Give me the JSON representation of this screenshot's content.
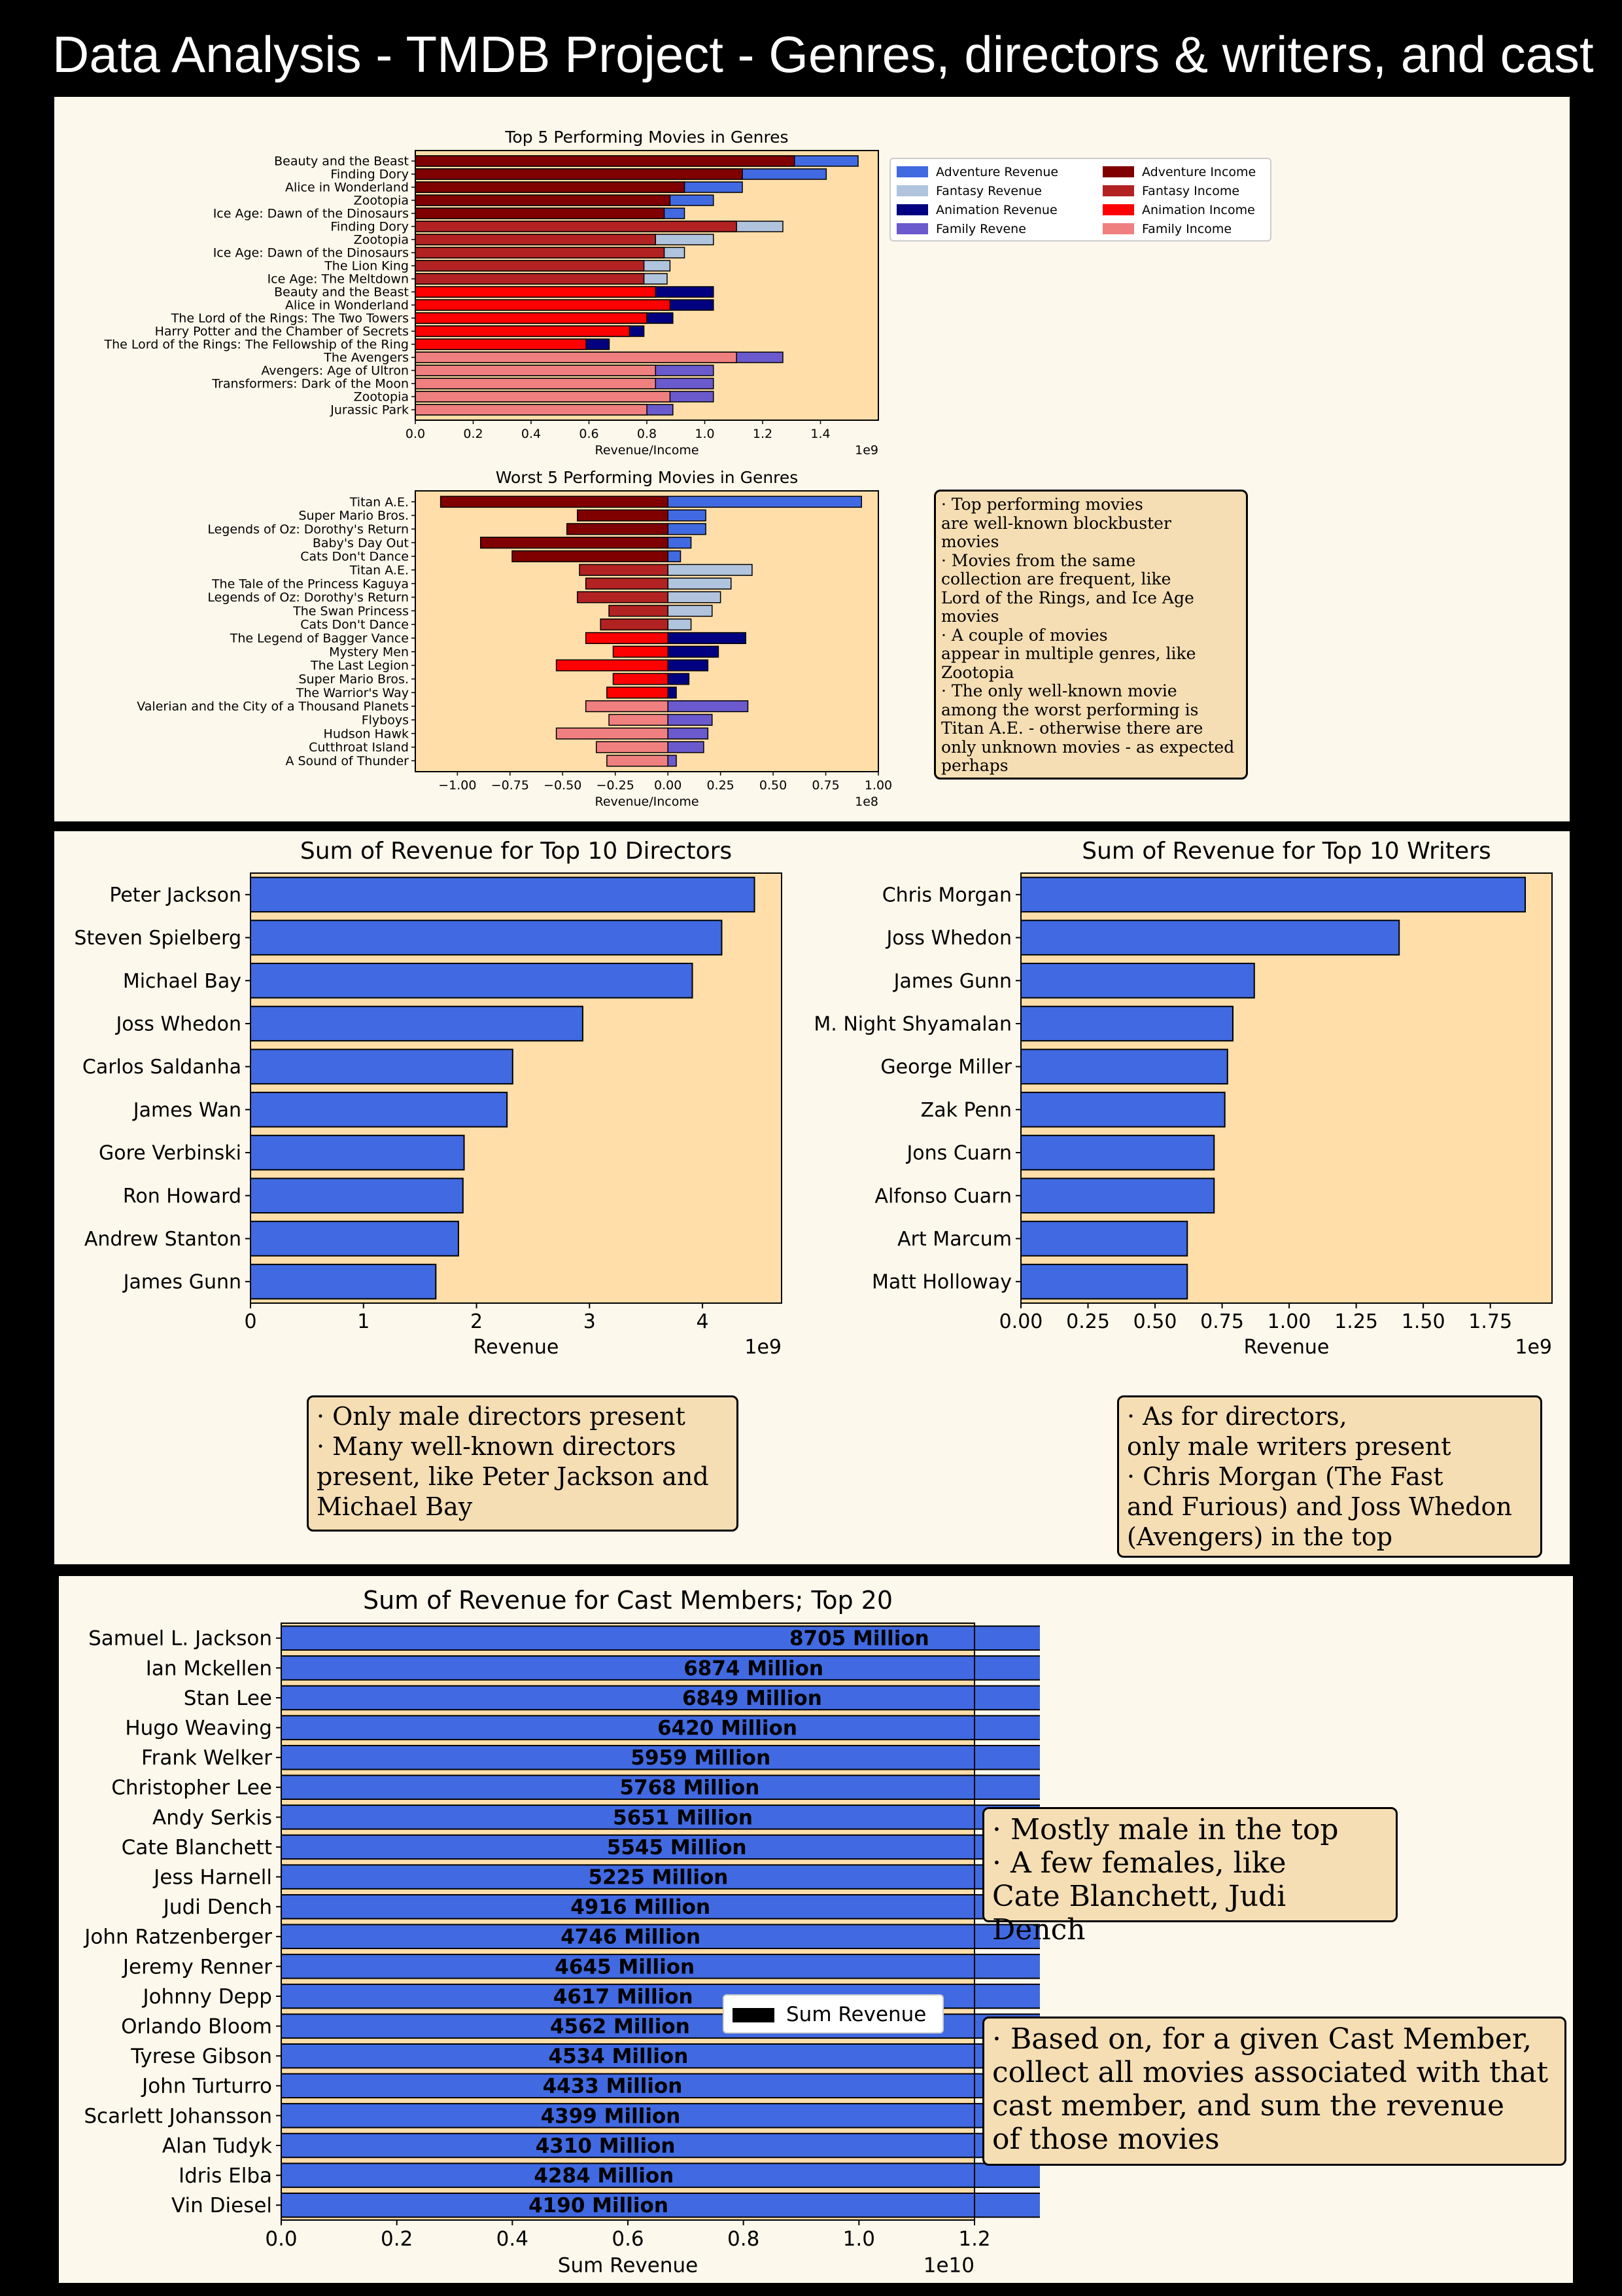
{
  "page_title": "Data Analysis - TMDB Project - Genres, directors & writers, and cast",
  "colors": {
    "plot_bg": "#ffdeaa",
    "blue": "#4169e1",
    "navy": "#000080",
    "slateblue": "#6a5acd",
    "lightsteel": "#b0c4de",
    "maroon": "#800000",
    "firebrick": "#b22222",
    "red": "#ff0000",
    "lightcoral": "#f08080"
  },
  "notes": {
    "genres": "· Top performing movies\nare well-known blockbuster\nmovies\n· Movies from the same\ncollection are frequent, like\nLord of the Rings, and Ice Age\nmovies\n· A couple of movies\nappear in multiple genres, like\nZootopia\n· The only well-known movie\namong the worst performing is\nTitan A.E. - otherwise there are\nonly unknown movies - as expected\nperhaps",
    "directors": "· Only male directors present\n· Many well-known directors\npresent, like Peter Jackson and\nMichael Bay",
    "writers": "· As for directors,\nonly male writers present\n· Chris Morgan (The Fast\nand Furious) and Joss Whedon\n(Avengers) in the top",
    "cast_1": "· Mostly male in the top\n· A few females, like\nCate Blanchett, Judi Dench",
    "cast_2": "· Based on, for a given Cast Member,\ncollect all movies associated with that\ncast member, and sum the revenue\nof those movies"
  },
  "chart_data": [
    {
      "id": "top5",
      "type": "bar",
      "orientation": "horizontal",
      "title": "Top 5 Performing Movies in Genres",
      "xlabel": "Revenue/Income",
      "xlim": [
        0,
        1.6
      ],
      "xticks": [
        "0.0",
        "0.2",
        "0.4",
        "0.6",
        "0.8",
        "1.0",
        "1.2",
        "1.4"
      ],
      "scale_label": "1e9",
      "legend": {
        "placement": "right",
        "entries": [
          {
            "label": "Adventure Revenue",
            "color": "#4169e1"
          },
          {
            "label": "Fantasy Revenue",
            "color": "#b0c4de"
          },
          {
            "label": "Animation Revenue",
            "color": "#000080"
          },
          {
            "label": "Family Revene",
            "color": "#6a5acd"
          },
          {
            "label": "Adventure Income",
            "color": "#800000"
          },
          {
            "label": "Fantasy Income",
            "color": "#b22222"
          },
          {
            "label": "Animation Income",
            "color": "#ff0000"
          },
          {
            "label": "Family Income",
            "color": "#f08080"
          }
        ]
      },
      "rows": [
        {
          "label": "Beauty and the Beast",
          "revenue": 1.53,
          "income": 1.31,
          "rev_color": "#4169e1",
          "inc_color": "#800000"
        },
        {
          "label": "Finding Dory",
          "revenue": 1.42,
          "income": 1.13,
          "rev_color": "#4169e1",
          "inc_color": "#800000"
        },
        {
          "label": "Alice in Wonderland",
          "revenue": 1.13,
          "income": 0.93,
          "rev_color": "#4169e1",
          "inc_color": "#800000"
        },
        {
          "label": "Zootopia",
          "revenue": 1.03,
          "income": 0.88,
          "rev_color": "#4169e1",
          "inc_color": "#800000"
        },
        {
          "label": "Ice Age: Dawn of the Dinosaurs",
          "revenue": 0.93,
          "income": 0.86,
          "rev_color": "#4169e1",
          "inc_color": "#800000"
        },
        {
          "label": "Finding Dory",
          "revenue": 1.27,
          "income": 1.11,
          "rev_color": "#b0c4de",
          "inc_color": "#b22222"
        },
        {
          "label": "Zootopia",
          "revenue": 1.03,
          "income": 0.83,
          "rev_color": "#b0c4de",
          "inc_color": "#b22222"
        },
        {
          "label": "Ice Age: Dawn of the Dinosaurs",
          "revenue": 0.93,
          "income": 0.86,
          "rev_color": "#b0c4de",
          "inc_color": "#b22222"
        },
        {
          "label": "The Lion King",
          "revenue": 0.88,
          "income": 0.79,
          "rev_color": "#b0c4de",
          "inc_color": "#b22222"
        },
        {
          "label": "Ice Age: The Meltdown",
          "revenue": 0.87,
          "income": 0.79,
          "rev_color": "#b0c4de",
          "inc_color": "#b22222"
        },
        {
          "label": "Beauty and the Beast",
          "revenue": 1.03,
          "income": 0.83,
          "rev_color": "#000080",
          "inc_color": "#ff0000"
        },
        {
          "label": "Alice in Wonderland",
          "revenue": 1.03,
          "income": 0.88,
          "rev_color": "#000080",
          "inc_color": "#ff0000"
        },
        {
          "label": "The Lord of the Rings: The Two Towers",
          "revenue": 0.89,
          "income": 0.8,
          "rev_color": "#000080",
          "inc_color": "#ff0000"
        },
        {
          "label": "Harry Potter and the Chamber of Secrets",
          "revenue": 0.79,
          "income": 0.74,
          "rev_color": "#000080",
          "inc_color": "#ff0000"
        },
        {
          "label": "The Lord of the Rings: The Fellowship of the Ring",
          "revenue": 0.67,
          "income": 0.59,
          "rev_color": "#000080",
          "inc_color": "#ff0000"
        },
        {
          "label": "The Avengers",
          "revenue": 1.27,
          "income": 1.11,
          "rev_color": "#6a5acd",
          "inc_color": "#f08080"
        },
        {
          "label": "Avengers: Age of Ultron",
          "revenue": 1.03,
          "income": 0.83,
          "rev_color": "#6a5acd",
          "inc_color": "#f08080"
        },
        {
          "label": "Transformers: Dark of the Moon",
          "revenue": 1.03,
          "income": 0.83,
          "rev_color": "#6a5acd",
          "inc_color": "#f08080"
        },
        {
          "label": "Zootopia",
          "revenue": 1.03,
          "income": 0.88,
          "rev_color": "#6a5acd",
          "inc_color": "#f08080"
        },
        {
          "label": "Jurassic Park",
          "revenue": 0.89,
          "income": 0.8,
          "rev_color": "#6a5acd",
          "inc_color": "#f08080"
        }
      ]
    },
    {
      "id": "worst5",
      "type": "bar",
      "orientation": "horizontal",
      "title": "Worst 5 Performing Movies in Genres",
      "xlabel": "Revenue/Income",
      "xlim": [
        -1.2,
        1.0
      ],
      "xticks": [
        "−1.00",
        "−0.75",
        "−0.50",
        "−0.25",
        "0.00",
        "0.25",
        "0.50",
        "0.75",
        "1.00"
      ],
      "xtick_values": [
        -1.0,
        -0.75,
        -0.5,
        -0.25,
        0,
        0.25,
        0.5,
        0.75,
        1.0
      ],
      "scale_label": "1e8",
      "rows": [
        {
          "label": "Titan A.E.",
          "revenue": 0.92,
          "income": -1.08,
          "rev_color": "#4169e1",
          "inc_color": "#800000"
        },
        {
          "label": "Super Mario Bros.",
          "revenue": 0.18,
          "income": -0.43,
          "rev_color": "#4169e1",
          "inc_color": "#800000"
        },
        {
          "label": "Legends of Oz: Dorothy's Return",
          "revenue": 0.18,
          "income": -0.48,
          "rev_color": "#4169e1",
          "inc_color": "#800000"
        },
        {
          "label": "Baby's Day Out",
          "revenue": 0.11,
          "income": -0.89,
          "rev_color": "#4169e1",
          "inc_color": "#800000"
        },
        {
          "label": "Cats Don't Dance",
          "revenue": 0.06,
          "income": -0.74,
          "rev_color": "#4169e1",
          "inc_color": "#800000"
        },
        {
          "label": "Titan A.E.",
          "revenue": 0.4,
          "income": -0.42,
          "rev_color": "#b0c4de",
          "inc_color": "#b22222"
        },
        {
          "label": "The Tale of the Princess Kaguya",
          "revenue": 0.3,
          "income": -0.39,
          "rev_color": "#b0c4de",
          "inc_color": "#b22222"
        },
        {
          "label": "Legends of Oz: Dorothy's Return",
          "revenue": 0.25,
          "income": -0.43,
          "rev_color": "#b0c4de",
          "inc_color": "#b22222"
        },
        {
          "label": "The Swan Princess",
          "revenue": 0.21,
          "income": -0.28,
          "rev_color": "#b0c4de",
          "inc_color": "#b22222"
        },
        {
          "label": "Cats Don't Dance",
          "revenue": 0.11,
          "income": -0.32,
          "rev_color": "#b0c4de",
          "inc_color": "#b22222"
        },
        {
          "label": "The Legend of Bagger Vance",
          "revenue": 0.37,
          "income": -0.39,
          "rev_color": "#000080",
          "inc_color": "#ff0000"
        },
        {
          "label": "Mystery Men",
          "revenue": 0.24,
          "income": -0.26,
          "rev_color": "#000080",
          "inc_color": "#ff0000"
        },
        {
          "label": "The Last Legion",
          "revenue": 0.19,
          "income": -0.53,
          "rev_color": "#000080",
          "inc_color": "#ff0000"
        },
        {
          "label": "Super Mario Bros.",
          "revenue": 0.1,
          "income": -0.26,
          "rev_color": "#000080",
          "inc_color": "#ff0000"
        },
        {
          "label": "The Warrior's Way",
          "revenue": 0.04,
          "income": -0.29,
          "rev_color": "#000080",
          "inc_color": "#ff0000"
        },
        {
          "label": "Valerian and the City of a Thousand Planets",
          "revenue": 0.38,
          "income": -0.39,
          "rev_color": "#6a5acd",
          "inc_color": "#f08080"
        },
        {
          "label": "Flyboys",
          "revenue": 0.21,
          "income": -0.28,
          "rev_color": "#6a5acd",
          "inc_color": "#f08080"
        },
        {
          "label": "Hudson Hawk",
          "revenue": 0.19,
          "income": -0.53,
          "rev_color": "#6a5acd",
          "inc_color": "#f08080"
        },
        {
          "label": "Cutthroat Island",
          "revenue": 0.17,
          "income": -0.34,
          "rev_color": "#6a5acd",
          "inc_color": "#f08080"
        },
        {
          "label": "A Sound of Thunder",
          "revenue": 0.04,
          "income": -0.29,
          "rev_color": "#6a5acd",
          "inc_color": "#f08080"
        }
      ]
    },
    {
      "id": "directors",
      "type": "bar",
      "orientation": "horizontal",
      "title": "Sum of Revenue for Top 10 Directors",
      "xlabel": "Revenue",
      "xlim": [
        0,
        4.7
      ],
      "xticks": [
        "0",
        "1",
        "2",
        "3",
        "4"
      ],
      "xtick_values": [
        0,
        1,
        2,
        3,
        4
      ],
      "scale_label": "1e9",
      "categories": [
        "Peter Jackson",
        "Steven Spielberg",
        "Michael Bay",
        "Joss Whedon",
        "Carlos Saldanha",
        "James Wan",
        "Gore Verbinski",
        "Ron Howard",
        "Andrew Stanton",
        "James Gunn"
      ],
      "values": [
        4.46,
        4.17,
        3.91,
        2.94,
        2.32,
        2.27,
        1.89,
        1.88,
        1.84,
        1.64
      ]
    },
    {
      "id": "writers",
      "type": "bar",
      "orientation": "horizontal",
      "title": "Sum of Revenue for Top 10 Writers",
      "xlabel": "Revenue",
      "xlim": [
        0,
        1.98
      ],
      "xticks": [
        "0.00",
        "0.25",
        "0.50",
        "0.75",
        "1.00",
        "1.25",
        "1.50",
        "1.75"
      ],
      "xtick_values": [
        0,
        0.25,
        0.5,
        0.75,
        1.0,
        1.25,
        1.5,
        1.75
      ],
      "scale_label": "1e9",
      "categories": [
        "Chris Morgan",
        "Joss Whedon",
        "James Gunn",
        "M. Night Shyamalan",
        "George Miller",
        "Zak Penn",
        "Jons Cuarn",
        "Alfonso Cuarn",
        "Art Marcum",
        "Matt Holloway"
      ],
      "values": [
        1.88,
        1.41,
        0.87,
        0.79,
        0.77,
        0.76,
        0.72,
        0.72,
        0.62,
        0.62
      ]
    },
    {
      "id": "cast",
      "type": "bar",
      "orientation": "horizontal",
      "title": "Sum of Revenue for Cast Members; Top 20",
      "xlabel": "Sum Revenue",
      "xlim": [
        0,
        1.2
      ],
      "xticks": [
        "0.0",
        "0.2",
        "0.4",
        "0.6",
        "0.8",
        "1.0",
        "1.2"
      ],
      "xtick_values": [
        0,
        0.2,
        0.4,
        0.6,
        0.8,
        1.0,
        1.2
      ],
      "scale_label": "1e10",
      "legend": {
        "placement": "center-right",
        "entries": [
          {
            "label": "Sum Revenue",
            "color": "#000000"
          }
        ]
      },
      "categories": [
        "Samuel L. Jackson",
        "Ian Mckellen",
        "Stan Lee",
        "Hugo Weaving",
        "Frank Welker",
        "Christopher Lee",
        "Andy Serkis",
        "Cate Blanchett",
        "Jess Harnell",
        "Judi Dench",
        "John Ratzenberger",
        "Jeremy Renner",
        "Johnny Depp",
        "Orlando Bloom",
        "Tyrese Gibson",
        "John Turturro",
        "Scarlett Johansson",
        "Alan Tudyk",
        "Idris Elba",
        "Vin Diesel"
      ],
      "values": [
        8705,
        6874,
        6849,
        6420,
        5959,
        5768,
        5651,
        5545,
        5225,
        4916,
        4746,
        4645,
        4617,
        4562,
        4534,
        4433,
        4399,
        4310,
        4284,
        4190
      ],
      "value_labels": [
        "8705 Million",
        "6874 Million",
        "6849 Million",
        "6420 Million",
        "5959 Million",
        "5768 Million",
        "5651 Million",
        "5545 Million",
        "5225 Million",
        "4916 Million",
        "4746 Million",
        "4645 Million",
        "4617 Million",
        "4562 Million",
        "4534 Million",
        "4433 Million",
        "4399 Million",
        "4310 Million",
        "4284 Million",
        "4190 Million"
      ]
    }
  ]
}
